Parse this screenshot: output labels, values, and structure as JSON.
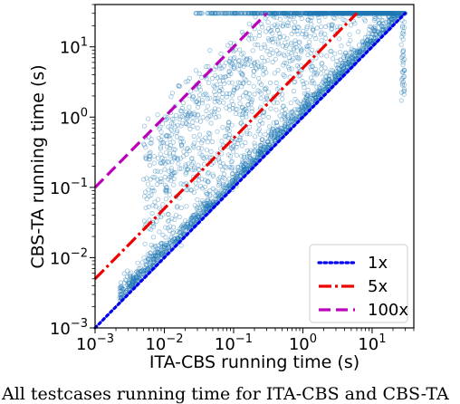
{
  "chart_data": {
    "type": "scatter",
    "xlabel": "ITA-CBS running time (s)",
    "ylabel": "CBS-TA running time (s)",
    "xscale": "log",
    "yscale": "log",
    "xlim": [
      0.001,
      40
    ],
    "ylim": [
      0.001,
      40
    ],
    "xticks": [
      0.001,
      0.01,
      0.1,
      1,
      10
    ],
    "xtick_labels": [
      {
        "base": "10",
        "exp": "−3"
      },
      {
        "base": "10",
        "exp": "−2"
      },
      {
        "base": "10",
        "exp": "−1"
      },
      {
        "base": "10",
        "exp": "0"
      },
      {
        "base": "10",
        "exp": "1"
      }
    ],
    "yticks": [
      0.001,
      0.01,
      0.1,
      1,
      10
    ],
    "ytick_labels": [
      {
        "base": "10",
        "exp": "−3"
      },
      {
        "base": "10",
        "exp": "−2"
      },
      {
        "base": "10",
        "exp": "−1"
      },
      {
        "base": "10",
        "exp": "0"
      },
      {
        "base": "10",
        "exp": "1"
      }
    ],
    "timeout_s": 30,
    "scatter_color": "#1f77b4",
    "reference_lines": [
      {
        "label": "1x",
        "factor": 1,
        "color": "#0000ee",
        "style": "dotted"
      },
      {
        "label": "5x",
        "factor": 5,
        "color": "#ee0000",
        "style": "dashdot"
      },
      {
        "label": "100x",
        "factor": 100,
        "color": "#bb00bb",
        "style": "dashed"
      }
    ],
    "legend_position": "lower-right",
    "grid": false
  },
  "caption": "All testcases running time for ITA-CBS and CBS-TA"
}
